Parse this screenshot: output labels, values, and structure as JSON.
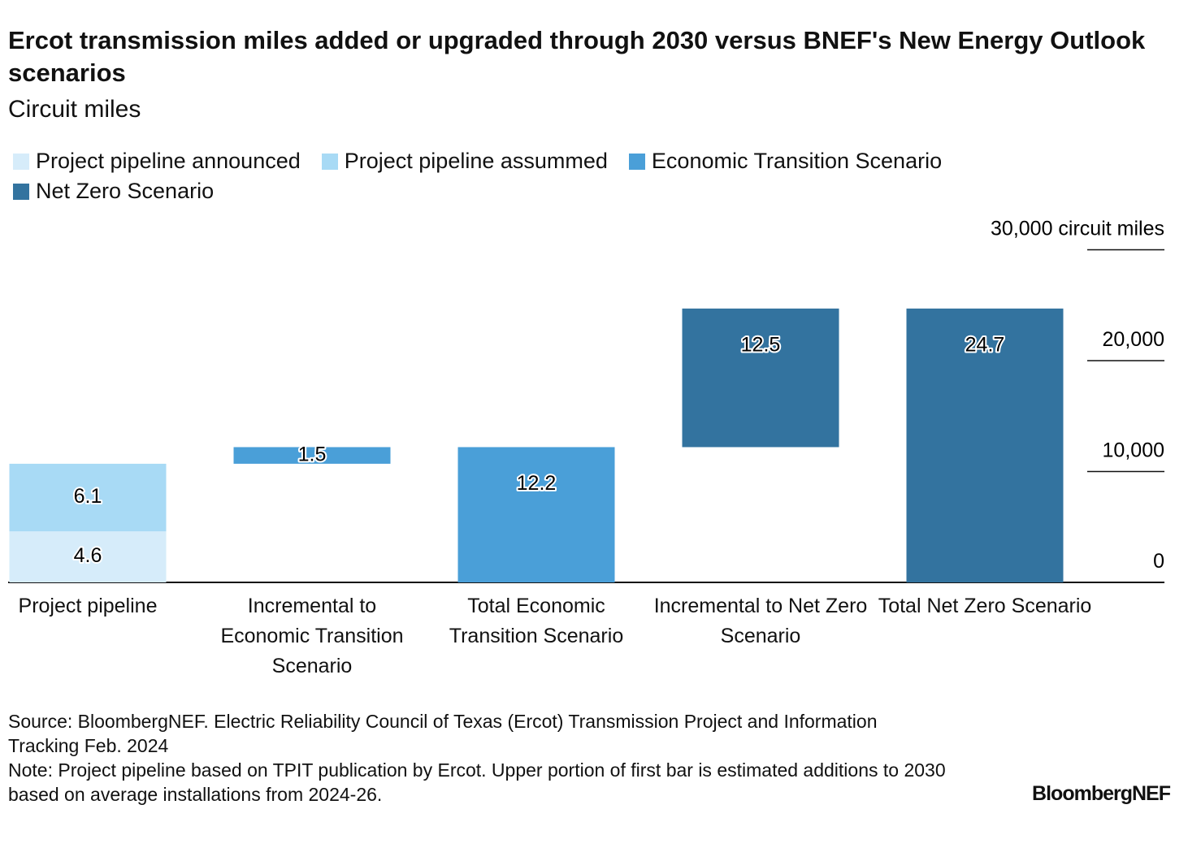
{
  "chart_data": {
    "type": "waterfall",
    "title": "Ercot transmission miles added or upgraded through 2030 versus BNEF's New Energy Outlook scenarios",
    "subtitle": "Circuit miles",
    "categories": [
      "Project pipeline",
      "Incremental to Economic Transition Scenario",
      "Total Economic Transition Scenario",
      "Incremental to Net Zero Scenario",
      "Total Net Zero Scenario"
    ],
    "series": [
      {
        "name": "Project pipeline announced",
        "color": "#d6ecfa",
        "values": [
          4600,
          null,
          null,
          null,
          null
        ],
        "value_labels": [
          "4.6",
          null,
          null,
          null,
          null
        ]
      },
      {
        "name": "Project pipeline assummed",
        "color": "#a8daf5",
        "values": [
          6100,
          null,
          null,
          null,
          null
        ],
        "value_labels": [
          "6.1",
          null,
          null,
          null,
          null
        ]
      },
      {
        "name": "Economic Transition Scenario",
        "color": "#4a9fd8",
        "values": [
          null,
          1500,
          12200,
          null,
          null
        ],
        "value_labels": [
          null,
          "1.5",
          "12.2",
          null,
          null
        ]
      },
      {
        "name": "Net Zero Scenario",
        "color": "#33739f",
        "values": [
          null,
          null,
          null,
          12500,
          24700
        ],
        "value_labels": [
          null,
          null,
          null,
          "12.5",
          "24.7"
        ]
      }
    ],
    "ylim": [
      0,
      30000
    ],
    "yticks": [
      0,
      {
        "value": 10000,
        "label": "10,000"
      },
      {
        "value": 20000,
        "label": "20,000"
      },
      {
        "value": 30000,
        "label": "30,000 circuit miles"
      }
    ],
    "grid": true,
    "source": "Source: BloombergNEF. Electric Reliability Council of Texas (Ercot) Transmission Project and Information Tracking Feb. 2024",
    "note": "Note: Project pipeline based on TPIT publication by Ercot. Upper portion of first bar is estimated additions to 2030 based on average installations from 2024-26.",
    "branding": "BloombergNEF"
  }
}
